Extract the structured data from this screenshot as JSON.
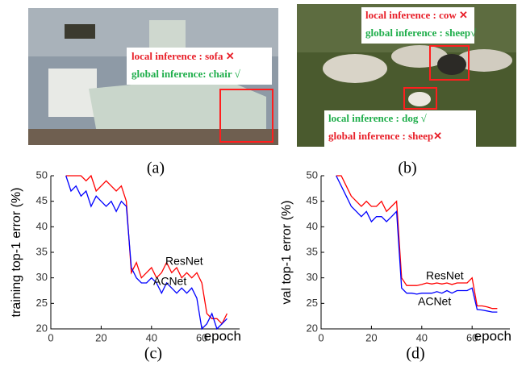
{
  "photos": [
    {
      "annotations": [
        {
          "text": "local inference   : sofa ✕",
          "color": "#e8202a"
        },
        {
          "text": "global inference: chair √",
          "color": "#1fae4b"
        }
      ]
    },
    {
      "annotations": [
        {
          "text": "local inference  : cow  ✕",
          "color": "#e8202a"
        },
        {
          "text": "global inference : sheep√",
          "color": "#1fae4b"
        },
        {
          "text": "local inference  : dog   √",
          "color": "#1fae4b"
        },
        {
          "text": "global inference : sheep✕",
          "color": "#e8202a"
        }
      ]
    }
  ],
  "captions": [
    "(a)",
    "(b)",
    "(c)",
    "(d)"
  ],
  "chart_data": [
    {
      "type": "line",
      "y_label": "training top-1 error (%)",
      "x_label": "epoch",
      "xlim": [
        0,
        75
      ],
      "ylim": [
        20,
        50
      ],
      "xticks": [
        0,
        20,
        40,
        60
      ],
      "yticks": [
        20,
        25,
        30,
        35,
        40,
        45,
        50
      ],
      "x": [
        6,
        8,
        10,
        12,
        14,
        16,
        18,
        20,
        22,
        24,
        26,
        28,
        30,
        32,
        34,
        36,
        38,
        40,
        42,
        44,
        46,
        48,
        50,
        52,
        54,
        56,
        58,
        60,
        62,
        64,
        66,
        68,
        70
      ],
      "series": [
        {
          "name": "ResNet",
          "color": "#ff0000",
          "values": [
            50,
            50,
            50,
            50,
            49,
            50,
            47,
            48,
            49,
            48,
            47,
            48,
            45,
            31,
            33,
            30,
            31,
            32,
            30,
            31,
            33,
            31,
            32,
            30,
            31,
            30,
            31,
            29,
            23,
            22,
            22,
            21,
            23
          ]
        },
        {
          "name": "ACNet",
          "color": "#0000ff",
          "values": [
            50,
            47,
            48,
            46,
            47,
            44,
            46,
            45,
            44,
            45,
            43,
            45,
            44,
            32,
            30,
            29,
            29,
            30,
            29,
            27,
            29,
            28,
            27,
            28,
            27,
            28,
            26,
            20,
            21,
            23,
            20,
            21,
            22
          ]
        }
      ]
    },
    {
      "type": "line",
      "y_label": "val top-1 error (%)",
      "x_label": "epoch",
      "xlim": [
        0,
        75
      ],
      "ylim": [
        20,
        50
      ],
      "xticks": [
        0,
        20,
        40,
        60
      ],
      "yticks": [
        20,
        25,
        30,
        35,
        40,
        45,
        50
      ],
      "x": [
        6,
        8,
        10,
        12,
        14,
        16,
        18,
        20,
        22,
        24,
        26,
        28,
        30,
        32,
        34,
        36,
        38,
        40,
        42,
        44,
        46,
        48,
        50,
        52,
        54,
        56,
        58,
        60,
        62,
        64,
        66,
        68,
        70
      ],
      "series": [
        {
          "name": "ResNet",
          "color": "#ff0000",
          "values": [
            50,
            50,
            48,
            46,
            45,
            44,
            45,
            44,
            44,
            45,
            43,
            44,
            45,
            30,
            28.5,
            28.5,
            28.5,
            28.7,
            29,
            28.8,
            29,
            28.8,
            29,
            28.7,
            29,
            29,
            29,
            30,
            24.5,
            24.5,
            24.3,
            24,
            24
          ]
        },
        {
          "name": "ACNet",
          "color": "#0000ff",
          "values": [
            50,
            48,
            46,
            44,
            43,
            42,
            43,
            41,
            42,
            42,
            41,
            42,
            43,
            28,
            27,
            27,
            26.8,
            27,
            27,
            27,
            27.3,
            27,
            27.5,
            27,
            27.5,
            27.5,
            27.5,
            28,
            23.8,
            23.7,
            23.5,
            23.3,
            23.3
          ]
        }
      ]
    }
  ]
}
